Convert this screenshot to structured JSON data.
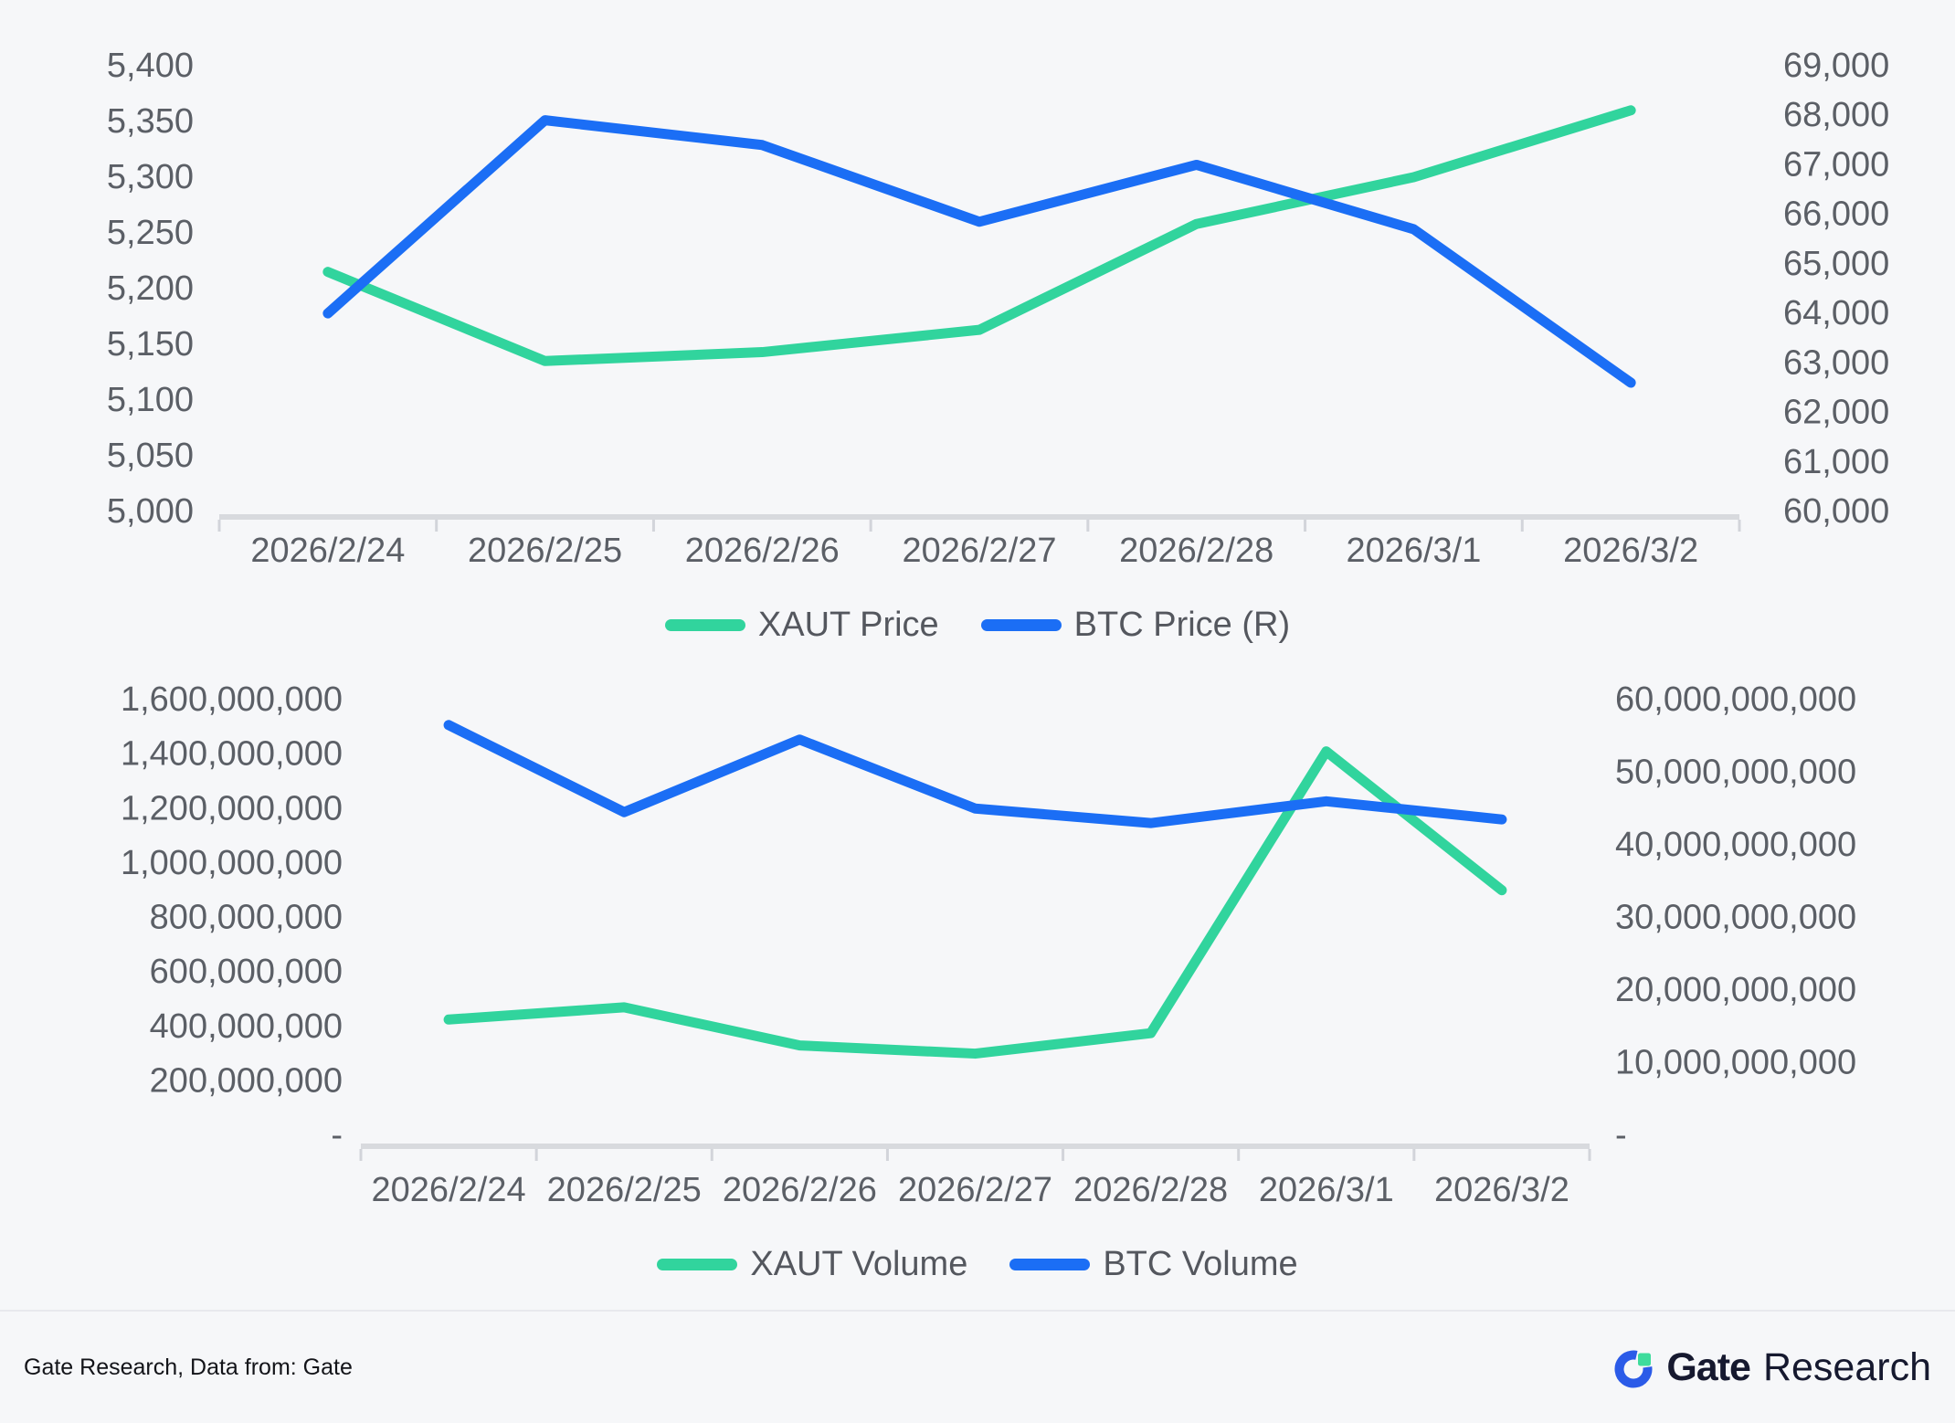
{
  "colors": {
    "xaut_green": "#31d49d",
    "btc_blue": "#1b6ef5",
    "background": "#f6f7f9",
    "axis_line": "#d8dade",
    "axis_text": "#5b5f66",
    "logo_blue": "#2b5be8",
    "logo_green": "#3edc9c",
    "logo_navy": "#16192f"
  },
  "chart_data": [
    {
      "type": "line",
      "title": "",
      "categories": [
        "2026/2/24",
        "2026/2/25",
        "2026/2/26",
        "2026/2/27",
        "2026/2/28",
        "2026/3/1",
        "2026/3/2"
      ],
      "series": [
        {
          "name": "XAUT Price",
          "axis": "left",
          "color": "#31d49d",
          "values": [
            5215,
            5135,
            5143,
            5163,
            5258,
            5300,
            5360
          ]
        },
        {
          "name": "BTC Price (R)",
          "axis": "right",
          "color": "#1b6ef5",
          "values": [
            64000,
            67900,
            67400,
            65850,
            67000,
            65700,
            62600
          ]
        }
      ],
      "left_axis": {
        "min": 5000,
        "max": 5400,
        "ticks": [
          "5,400",
          "5,350",
          "5,300",
          "5,250",
          "5,200",
          "5,150",
          "5,100",
          "5,050",
          "5,000"
        ]
      },
      "right_axis": {
        "min": 60000,
        "max": 69000,
        "ticks": [
          "69,000",
          "68,000",
          "67,000",
          "66,000",
          "65,000",
          "64,000",
          "63,000",
          "62,000",
          "61,000",
          "60,000"
        ]
      },
      "grid": false,
      "legend_position": "bottom"
    },
    {
      "type": "line",
      "title": "",
      "categories": [
        "2026/2/24",
        "2026/2/25",
        "2026/2/26",
        "2026/2/27",
        "2026/2/28",
        "2026/3/1",
        "2026/3/2"
      ],
      "series": [
        {
          "name": "XAUT Volume",
          "axis": "left",
          "color": "#31d49d",
          "values": [
            425000000,
            470000000,
            330000000,
            300000000,
            375000000,
            1410000000,
            900000000
          ]
        },
        {
          "name": "BTC Volume",
          "axis": "right",
          "color": "#1b6ef5",
          "values": [
            56500000000,
            44500000000,
            54500000000,
            45000000000,
            43000000000,
            46000000000,
            43500000000
          ]
        }
      ],
      "left_axis": {
        "min": 0,
        "max": 1600000000,
        "ticks": [
          "1,600,000,000",
          "1,400,000,000",
          "1,200,000,000",
          "1,000,000,000",
          "800,000,000",
          "600,000,000",
          "400,000,000",
          "200,000,000",
          "-"
        ]
      },
      "right_axis": {
        "min": 0,
        "max": 60000000000,
        "ticks": [
          "60,000,000,000",
          "50,000,000,000",
          "40,000,000,000",
          "30,000,000,000",
          "20,000,000,000",
          "10,000,000,000",
          "-"
        ]
      },
      "grid": false,
      "legend_position": "bottom"
    }
  ],
  "footer": {
    "source_text": "Gate Research, Data from: Gate",
    "logo": {
      "brand_bold": "Gate",
      "brand_regular": "Research"
    }
  }
}
